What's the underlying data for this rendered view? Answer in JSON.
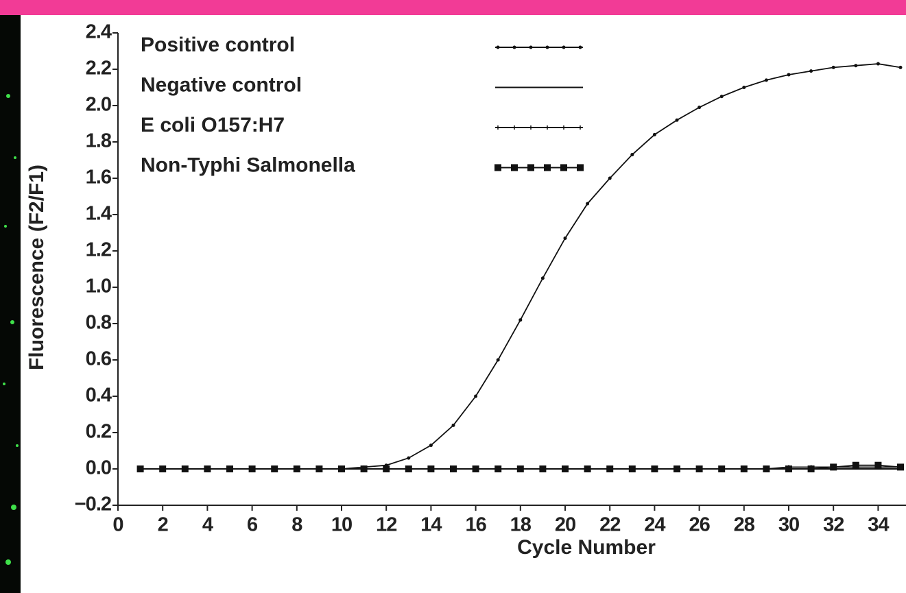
{
  "chart_data": {
    "type": "line",
    "x_label": "Cycle Number",
    "y_label": "Fluorescence (F2/F1)",
    "x": [
      1,
      2,
      3,
      4,
      5,
      6,
      7,
      8,
      9,
      10,
      11,
      12,
      13,
      14,
      15,
      16,
      17,
      18,
      19,
      20,
      21,
      22,
      23,
      24,
      25,
      26,
      27,
      28,
      29,
      30,
      31,
      32,
      33,
      34,
      35
    ],
    "series": [
      {
        "name": "Positive control",
        "color": "#111111",
        "marker": "dot",
        "values": [
          0,
          0,
          0,
          0,
          0,
          0,
          0,
          0,
          0,
          0,
          0.01,
          0.02,
          0.06,
          0.13,
          0.24,
          0.4,
          0.6,
          0.82,
          1.05,
          1.27,
          1.46,
          1.6,
          1.73,
          1.84,
          1.92,
          1.99,
          2.05,
          2.1,
          2.14,
          2.17,
          2.19,
          2.21,
          2.22,
          2.23,
          2.21
        ]
      },
      {
        "name": "Negative control",
        "color": "#111111",
        "marker": "none",
        "values": [
          0,
          0,
          0,
          0,
          0,
          0,
          0,
          0,
          0,
          0,
          0,
          0,
          0,
          0,
          0,
          0,
          0,
          0,
          0,
          0,
          0,
          0,
          0,
          0,
          0,
          0,
          0,
          0,
          0,
          0,
          0,
          0,
          0,
          0,
          0
        ]
      },
      {
        "name": "E coli O157:H7",
        "color": "#111111",
        "marker": "cross",
        "values": [
          0,
          0,
          0,
          0,
          0,
          0,
          0,
          0,
          0,
          0,
          0,
          0,
          0,
          0,
          0,
          0,
          0,
          0,
          0,
          0,
          0,
          0,
          0,
          0,
          0,
          0,
          0,
          0,
          0,
          0.01,
          0.01,
          0.01,
          0.01,
          0.01,
          0.01
        ]
      },
      {
        "name": "Non-Typhi Salmonella",
        "color": "#111111",
        "marker": "square",
        "values": [
          0,
          0,
          0,
          0,
          0,
          0,
          0,
          0,
          0,
          0,
          0,
          0,
          0,
          0,
          0,
          0,
          0,
          0,
          0,
          0,
          0,
          0,
          0,
          0,
          0,
          0,
          0,
          0,
          0,
          0,
          0,
          0.01,
          0.02,
          0.02,
          0.01
        ]
      }
    ],
    "xlim": [
      0,
      35.2
    ],
    "xticks": [
      0,
      2,
      4,
      6,
      8,
      10,
      12,
      14,
      16,
      18,
      20,
      22,
      24,
      26,
      28,
      30,
      32,
      34
    ],
    "ylim": [
      -0.2,
      2.4
    ],
    "yticks": [
      {
        "value": -0.2,
        "label": "−0.2"
      },
      {
        "value": 0,
        "label": "0.0"
      },
      0.2,
      0.4,
      0.6,
      0.8,
      {
        "value": 1,
        "label": "1.0"
      },
      1.2,
      1.4,
      1.6,
      1.8,
      {
        "value": 2,
        "label": "2.0"
      },
      2.2,
      2.4
    ],
    "legend": "top-left",
    "grid": false
  }
}
